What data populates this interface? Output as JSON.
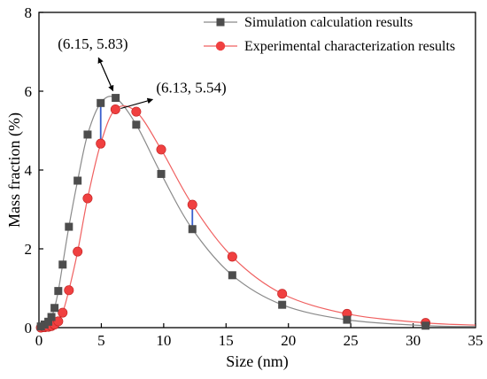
{
  "chart_data": {
    "type": "line",
    "xlabel": "Size (nm)",
    "ylabel": "Mass fraction (%)",
    "xlim": [
      0,
      35
    ],
    "ylim": [
      0,
      8
    ],
    "xticks": [
      0,
      5,
      10,
      15,
      20,
      25,
      30,
      35
    ],
    "yticks": [
      0,
      2,
      4,
      6,
      8
    ],
    "xtick_labels": [
      "0",
      "5",
      "10",
      "15",
      "20",
      "25",
      "30",
      "35"
    ],
    "ytick_labels": [
      "0",
      "2",
      "4",
      "6",
      "8"
    ],
    "grid": false,
    "legend_position": "top-right",
    "series": [
      {
        "name": "Simulation calculation results",
        "color": "#4d4d4d",
        "line_color": "#8a8a8a",
        "marker": "square",
        "x": [
          0.15,
          0.45,
          0.75,
          1.0,
          1.25,
          1.55,
          1.9,
          2.4,
          3.1,
          3.9,
          4.95,
          6.15,
          7.8,
          9.8,
          12.3,
          15.5,
          19.5,
          24.7,
          31.0
        ],
        "y": [
          0.03,
          0.08,
          0.15,
          0.27,
          0.5,
          0.93,
          1.6,
          2.56,
          3.73,
          4.9,
          5.7,
          5.83,
          5.15,
          3.9,
          2.5,
          1.33,
          0.58,
          0.2,
          0.05
        ]
      },
      {
        "name": "Experimental characterization results",
        "color": "#f04040",
        "line_color": "#f06060",
        "marker": "circle",
        "x": [
          0.15,
          0.45,
          0.75,
          1.0,
          1.25,
          1.55,
          1.9,
          2.4,
          3.1,
          3.9,
          4.95,
          6.13,
          7.8,
          9.8,
          12.3,
          15.5,
          19.5,
          24.7,
          31.0
        ],
        "y": [
          0.0,
          0.01,
          0.02,
          0.04,
          0.08,
          0.16,
          0.38,
          0.95,
          1.93,
          3.28,
          4.67,
          5.54,
          5.48,
          4.52,
          3.12,
          1.8,
          0.86,
          0.35,
          0.12
        ]
      }
    ],
    "difference_bars": [
      {
        "x": 4.95,
        "y_from": 4.67,
        "y_to": 5.7,
        "color": "#3a5fcd"
      },
      {
        "x": 12.3,
        "y_from": 2.5,
        "y_to": 3.12,
        "color": "#3a5fcd"
      }
    ],
    "annotations": [
      {
        "name": "sim-peak-annotation",
        "text": "(6.15, 5.83)",
        "point": [
          6.15,
          5.83
        ],
        "label_at": [
          5.2,
          6.85
        ]
      },
      {
        "name": "exp-peak-annotation",
        "text": "(6.13, 5.54)",
        "point": [
          6.13,
          5.54
        ],
        "label_at": [
          9.4,
          5.88
        ]
      }
    ]
  }
}
